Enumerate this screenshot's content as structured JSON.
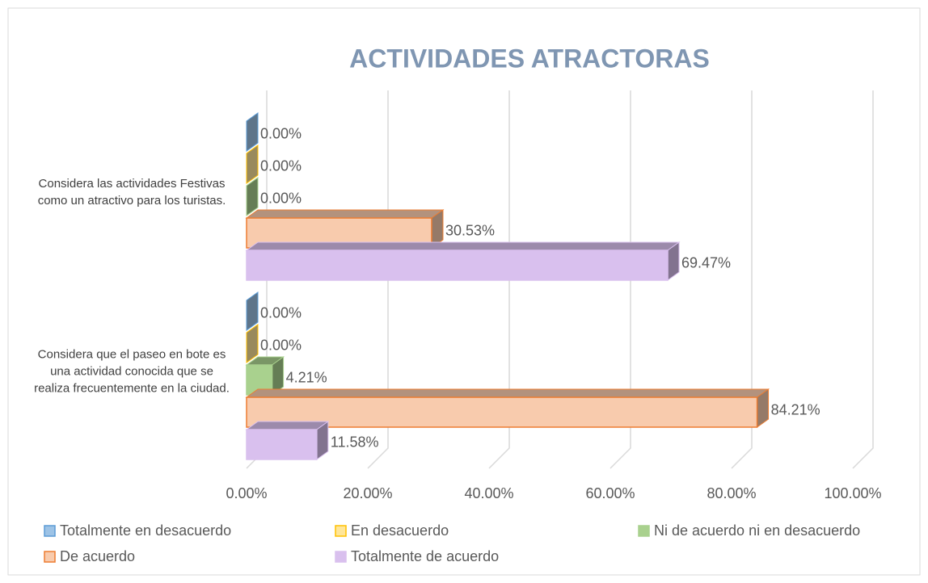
{
  "chart_data": {
    "type": "bar3d_horizontal",
    "title": "ACTIVIDADES ATRACTORAS",
    "categories": [
      "Considera las actividades Festivas como un atractivo para los turistas.",
      "Considera que el paseo en bote es una actividad conocida que se realiza frecuentemente en la ciudad."
    ],
    "series": [
      {
        "name": "Totalmente en desacuerdo",
        "color": "#9dc3e6",
        "edgecolor": "#5b9bd5",
        "values": [
          0,
          0
        ],
        "value_labels": [
          "0.00%",
          "0.00%"
        ]
      },
      {
        "name": "En desacuerdo",
        "color": "#ffe699",
        "edgecolor": "#ffc000",
        "values": [
          0,
          0
        ],
        "value_labels": [
          "0.00%",
          "0.00%"
        ]
      },
      {
        "name": "Ni de acuerdo ni en desacuerdo",
        "color": "#a9d18e",
        "edgecolor": "#a9d18e",
        "values": [
          0,
          4.21
        ],
        "value_labels": [
          "0.00%",
          "4.21%"
        ]
      },
      {
        "name": "De acuerdo",
        "color": "#f8cbad",
        "edgecolor": "#ed7d31",
        "values": [
          30.53,
          84.21
        ],
        "value_labels": [
          "30.53%",
          "84.21%"
        ]
      },
      {
        "name": "Totalmente de acuerdo",
        "color": "#d9c0ee",
        "edgecolor": "#d9c0ee",
        "values": [
          69.47,
          11.58
        ],
        "value_labels": [
          "69.47%",
          "11.58%"
        ]
      }
    ],
    "xlim": [
      0,
      100
    ],
    "xticks": [
      {
        "value": 0,
        "label": "0.00%"
      },
      {
        "value": 20,
        "label": "20.00%"
      },
      {
        "value": 40,
        "label": "40.00%"
      },
      {
        "value": 60,
        "label": "60.00%"
      },
      {
        "value": 80,
        "label": "80.00%"
      },
      {
        "value": 100,
        "label": "100.00%"
      }
    ],
    "grid": true,
    "legend": "bottom"
  }
}
